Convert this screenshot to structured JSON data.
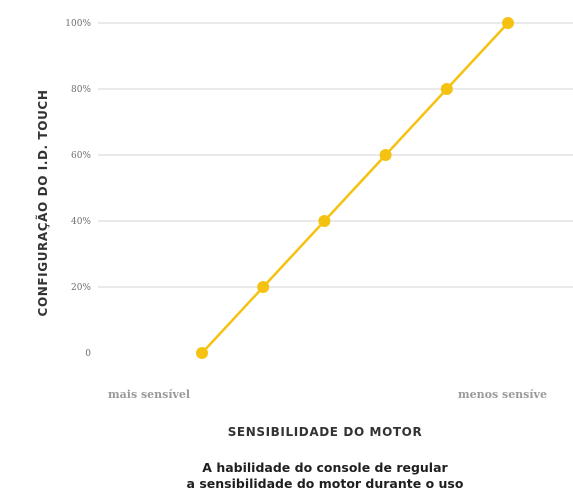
{
  "chart_data": {
    "type": "line",
    "xlabel": "SENSIBILIDADE DO MOTOR",
    "ylabel": "CONFIGURAÇÃO DO I.D. TOUCH",
    "x_start_label": "mais sensível",
    "x_end_label": "menos sensíve",
    "y_tick_labels": [
      "0",
      "20%",
      "40%",
      "60%",
      "80%",
      "100%"
    ],
    "ylim": [
      0,
      100
    ],
    "grid": true,
    "line_color": "#F5C211",
    "series": [
      {
        "values": [
          0,
          20,
          40,
          60,
          80,
          100
        ]
      }
    ],
    "caption_line1": "A habilidade do console de regular",
    "caption_line2": "a sensibilidade do motor durante o uso"
  }
}
